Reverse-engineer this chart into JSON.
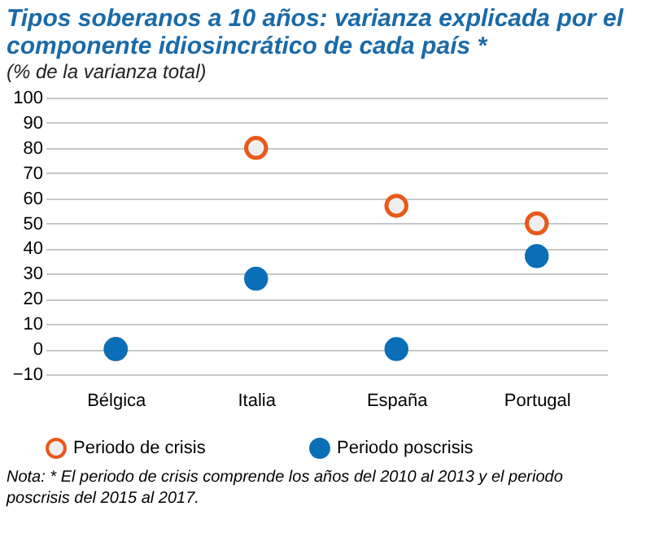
{
  "chart_data": {
    "type": "scatter",
    "title": "Tipos soberanos a 10 años: varianza explicada por el componente idiosincrático de cada país *",
    "subtitle": "(% de la varianza total)",
    "categories": [
      "Bélgica",
      "Italia",
      "España",
      "Portugal"
    ],
    "series": [
      {
        "name": "Periodo de crisis",
        "color": "#e8591a",
        "values": [
          0,
          80,
          57,
          50
        ]
      },
      {
        "name": "Periodo poscrisis",
        "color": "#0a6fb7",
        "values": [
          0,
          28,
          0,
          37
        ]
      }
    ],
    "ylim": [
      -10,
      100
    ],
    "yticks": [
      -10,
      0,
      10,
      20,
      30,
      40,
      50,
      60,
      70,
      80,
      90,
      100
    ],
    "grid": "y",
    "legend": "bottom",
    "marker": "circle",
    "annotations": [
      "Nota: * El periodo de crisis comprende los años del 2010 al 2013 y el periodo poscrisis del 2015 al 2017."
    ]
  }
}
